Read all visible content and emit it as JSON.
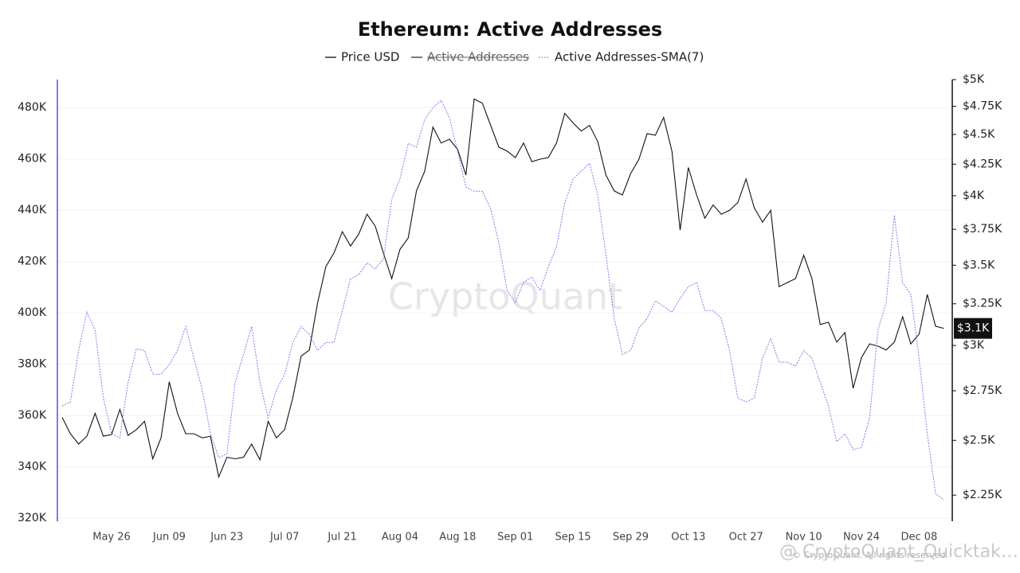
{
  "chart_data": {
    "type": "line",
    "title": "Ethereum: Active Addresses",
    "watermark": "CryptoQuant",
    "footer": "© CryptoQuant. All rights reserved.",
    "overlay": "@ CryptoQuant_Quicktak…",
    "last_value_label": "$3.1K",
    "categories": [
      null,
      null,
      null,
      null,
      null,
      null,
      "May 26",
      null,
      null,
      null,
      null,
      null,
      null,
      "Jun 09",
      null,
      null,
      null,
      null,
      null,
      null,
      "Jun 23",
      null,
      null,
      null,
      null,
      null,
      null,
      "Jul 07",
      null,
      null,
      null,
      null,
      null,
      null,
      "Jul 21",
      null,
      null,
      null,
      null,
      null,
      null,
      "Aug 04",
      null,
      null,
      null,
      null,
      null,
      null,
      "Aug 18",
      null,
      null,
      null,
      null,
      null,
      null,
      "Sep 01",
      null,
      null,
      null,
      null,
      null,
      null,
      "Sep 15",
      null,
      null,
      null,
      null,
      null,
      null,
      "Sep 29",
      null,
      null,
      null,
      null,
      null,
      null,
      "Oct 13",
      null,
      null,
      null,
      null,
      null,
      null,
      "Oct 27",
      null,
      null,
      null,
      null,
      null,
      null,
      "Nov 10",
      null,
      null,
      null,
      null,
      null,
      null,
      "Nov 24",
      null,
      null,
      null,
      null,
      null,
      null,
      "Dec 08",
      null,
      null,
      null
    ],
    "series": [
      {
        "name": "Price USD",
        "color": "#111111",
        "axis": "y2",
        "values": [
          2613,
          2532,
          2482,
          2520,
          2633,
          2520,
          2528,
          2653,
          2524,
          2552,
          2593,
          2413,
          2512,
          2798,
          2633,
          2532,
          2532,
          2512,
          2520,
          2330,
          2420,
          2413,
          2420,
          2482,
          2409,
          2593,
          2512,
          2552,
          2714,
          2939,
          2974,
          3255,
          3490,
          3585,
          3733,
          3631,
          3716,
          3860,
          3773,
          3580,
          3411,
          3608,
          3688,
          4037,
          4194,
          4564,
          4426,
          4459,
          4372,
          4162,
          4816,
          4779,
          4579,
          4392,
          4358,
          4304,
          4426,
          4270,
          4291,
          4304,
          4426,
          4686,
          4600,
          4529,
          4579,
          4439,
          4162,
          4037,
          4006,
          4175,
          4291,
          4507,
          4493,
          4650,
          4358,
          3744,
          4223,
          4006,
          3831,
          3930,
          3860,
          3889,
          3948,
          4131,
          3907,
          3802,
          3889,
          3359,
          3385,
          3411,
          3568,
          3411,
          3123,
          3137,
          3019,
          3075,
          2763,
          2930,
          3009,
          2996,
          2974,
          3019,
          3170,
          3009,
          3066,
          3309,
          3113,
          3100
        ]
      },
      {
        "name": "Active Addresses",
        "color": "#333333",
        "visible": false
      },
      {
        "name": "Active Addresses-SMA(7)",
        "color": "#8577f2",
        "dashed": true,
        "values": [
          363700,
          365300,
          385400,
          400300,
          393200,
          366800,
          352900,
          351300,
          373000,
          386000,
          385400,
          376100,
          376100,
          379800,
          385400,
          394700,
          382300,
          369900,
          352900,
          343600,
          345100,
          373000,
          383900,
          394700,
          373000,
          359100,
          369900,
          376100,
          388500,
          394700,
          391600,
          385400,
          388500,
          388500,
          400900,
          413300,
          414900,
          419500,
          417100,
          421100,
          444300,
          452100,
          466000,
          464500,
          475300,
          480000,
          482800,
          476000,
          462900,
          449000,
          447400,
          447400,
          440600,
          427300,
          408700,
          404000,
          411800,
          414000,
          408700,
          418000,
          425700,
          442800,
          452100,
          455200,
          458300,
          445900,
          422600,
          397800,
          383900,
          385400,
          394100,
          397800,
          404700,
          402500,
          400300,
          405600,
          410200,
          411800,
          400900,
          400900,
          397800,
          385400,
          366800,
          365300,
          366800,
          382300,
          390100,
          380800,
          380800,
          379200,
          385400,
          382300,
          373000,
          363700,
          349800,
          352900,
          346700,
          347600,
          359100,
          393200,
          404000,
          438100,
          411800,
          407100,
          382300,
          352900,
          329600,
          327100
        ]
      }
    ],
    "ylim": [
      318800,
      490900
    ],
    "yticks": [
      {
        "value": 320000,
        "label": "320K"
      },
      {
        "value": 340000,
        "label": "340K"
      },
      {
        "value": 360000,
        "label": "360K"
      },
      {
        "value": 380000,
        "label": "380K"
      },
      {
        "value": 400000,
        "label": "400K"
      },
      {
        "value": 420000,
        "label": "420K"
      },
      {
        "value": 440000,
        "label": "440K"
      },
      {
        "value": 460000,
        "label": "460K"
      },
      {
        "value": 480000,
        "label": "480K"
      }
    ],
    "y2lim": [
      2140,
      5000
    ],
    "y2log": true,
    "y2ticks": [
      {
        "value": 2250,
        "label": "$2.25K"
      },
      {
        "value": 2500,
        "label": "$2.5K"
      },
      {
        "value": 2750,
        "label": "$2.75K"
      },
      {
        "value": 3000,
        "label": "$3K"
      },
      {
        "value": 3250,
        "label": "$3.25K"
      },
      {
        "value": 3500,
        "label": "$3.5K"
      },
      {
        "value": 3750,
        "label": "$3.75K"
      },
      {
        "value": 4000,
        "label": "$4K"
      },
      {
        "value": 4250,
        "label": "$4.25K"
      },
      {
        "value": 4500,
        "label": "$4.5K"
      },
      {
        "value": 4750,
        "label": "$4.75K"
      },
      {
        "value": 5000,
        "label": "$5K"
      }
    ],
    "grid": true,
    "left_axis_color": "#8577f2",
    "right_axis_color": "#111111"
  }
}
